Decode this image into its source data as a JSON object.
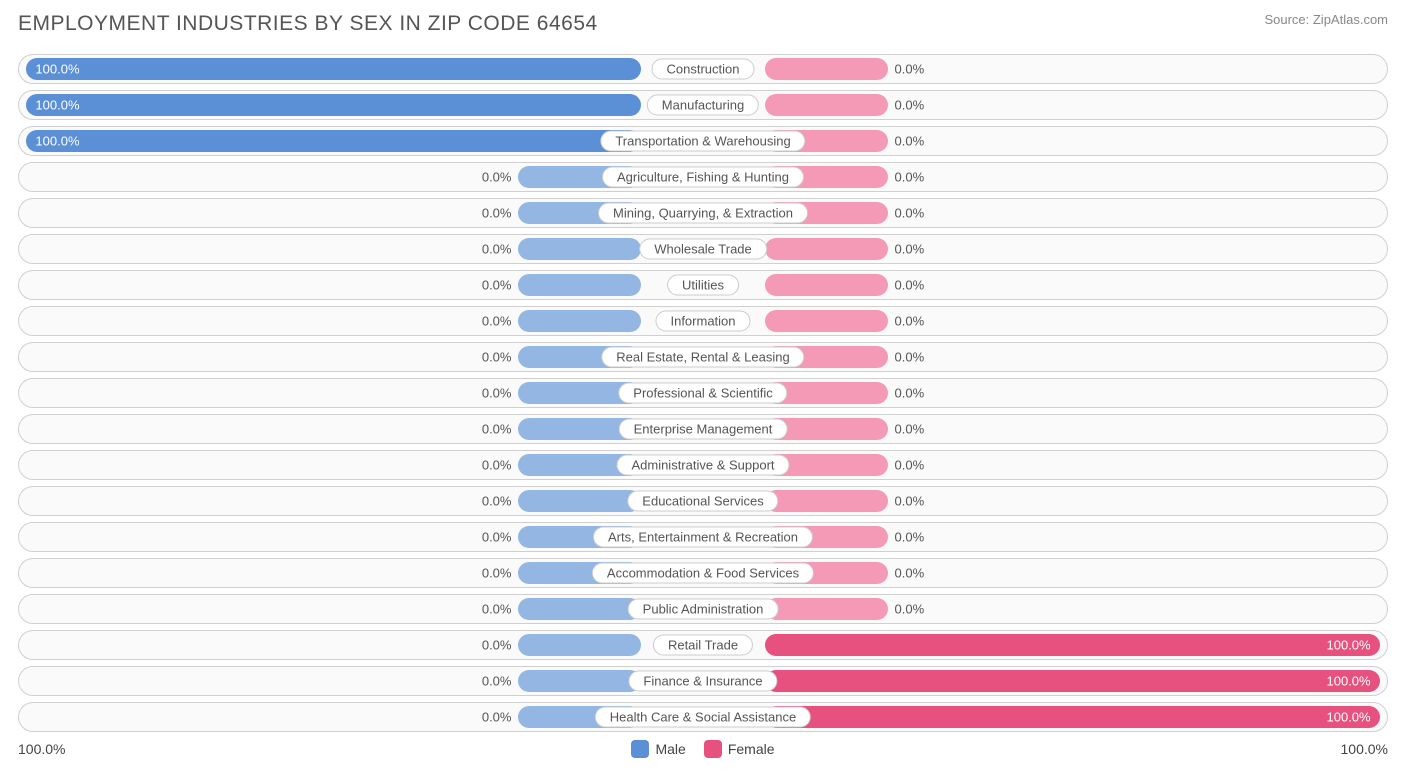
{
  "title": "EMPLOYMENT INDUSTRIES BY SEX IN ZIP CODE 64654",
  "source": "Source: ZipAtlas.com",
  "colors": {
    "male_full": "#5b8fd6",
    "male_default": "#93b6e3",
    "female_full": "#e6517f",
    "female_default": "#f49ab6",
    "row_bg": "#fafafa",
    "row_border": "#d0d0d0",
    "label_border": "#cccccc",
    "text": "#555555",
    "title_text": "#555555",
    "source_text": "#888888",
    "white_text": "#ffffff"
  },
  "axis": {
    "left": "100.0%",
    "right": "100.0%"
  },
  "legend": {
    "male": "Male",
    "female": "Female"
  },
  "rows": [
    {
      "label": "Construction",
      "male": 100.0,
      "female": 0.0
    },
    {
      "label": "Manufacturing",
      "male": 100.0,
      "female": 0.0
    },
    {
      "label": "Transportation & Warehousing",
      "male": 100.0,
      "female": 0.0
    },
    {
      "label": "Agriculture, Fishing & Hunting",
      "male": 0.0,
      "female": 0.0
    },
    {
      "label": "Mining, Quarrying, & Extraction",
      "male": 0.0,
      "female": 0.0
    },
    {
      "label": "Wholesale Trade",
      "male": 0.0,
      "female": 0.0
    },
    {
      "label": "Utilities",
      "male": 0.0,
      "female": 0.0
    },
    {
      "label": "Information",
      "male": 0.0,
      "female": 0.0
    },
    {
      "label": "Real Estate, Rental & Leasing",
      "male": 0.0,
      "female": 0.0
    },
    {
      "label": "Professional & Scientific",
      "male": 0.0,
      "female": 0.0
    },
    {
      "label": "Enterprise Management",
      "male": 0.0,
      "female": 0.0
    },
    {
      "label": "Administrative & Support",
      "male": 0.0,
      "female": 0.0
    },
    {
      "label": "Educational Services",
      "male": 0.0,
      "female": 0.0
    },
    {
      "label": "Arts, Entertainment & Recreation",
      "male": 0.0,
      "female": 0.0
    },
    {
      "label": "Accommodation & Food Services",
      "male": 0.0,
      "female": 0.0
    },
    {
      "label": "Public Administration",
      "male": 0.0,
      "female": 0.0
    },
    {
      "label": "Retail Trade",
      "male": 0.0,
      "female": 100.0
    },
    {
      "label": "Finance & Insurance",
      "male": 0.0,
      "female": 100.0
    },
    {
      "label": "Health Care & Social Assistance",
      "male": 0.0,
      "female": 100.0
    }
  ]
}
